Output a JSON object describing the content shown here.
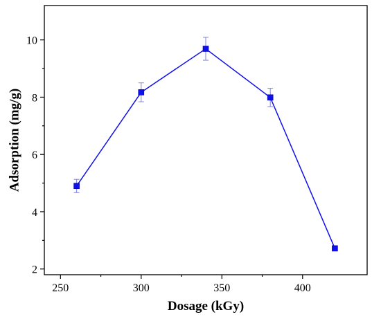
{
  "chart_data": {
    "type": "line",
    "title": "",
    "xlabel": "Dosage (kGy)",
    "ylabel": "Adsorption (mg/g)",
    "xlim": [
      240,
      440
    ],
    "ylim": [
      1.8,
      11.2
    ],
    "x_ticks": [
      250,
      300,
      350,
      400
    ],
    "y_ticks": [
      2,
      4,
      6,
      8,
      10
    ],
    "grid": false,
    "legend": "none",
    "series": [
      {
        "color": "#1010e8",
        "marker": "square",
        "x": [
          260,
          300,
          340,
          380,
          420
        ],
        "y": [
          4.9,
          8.17,
          9.69,
          7.99,
          2.72
        ],
        "error": [
          0.23,
          0.33,
          0.4,
          0.32,
          0.08
        ]
      }
    ]
  }
}
